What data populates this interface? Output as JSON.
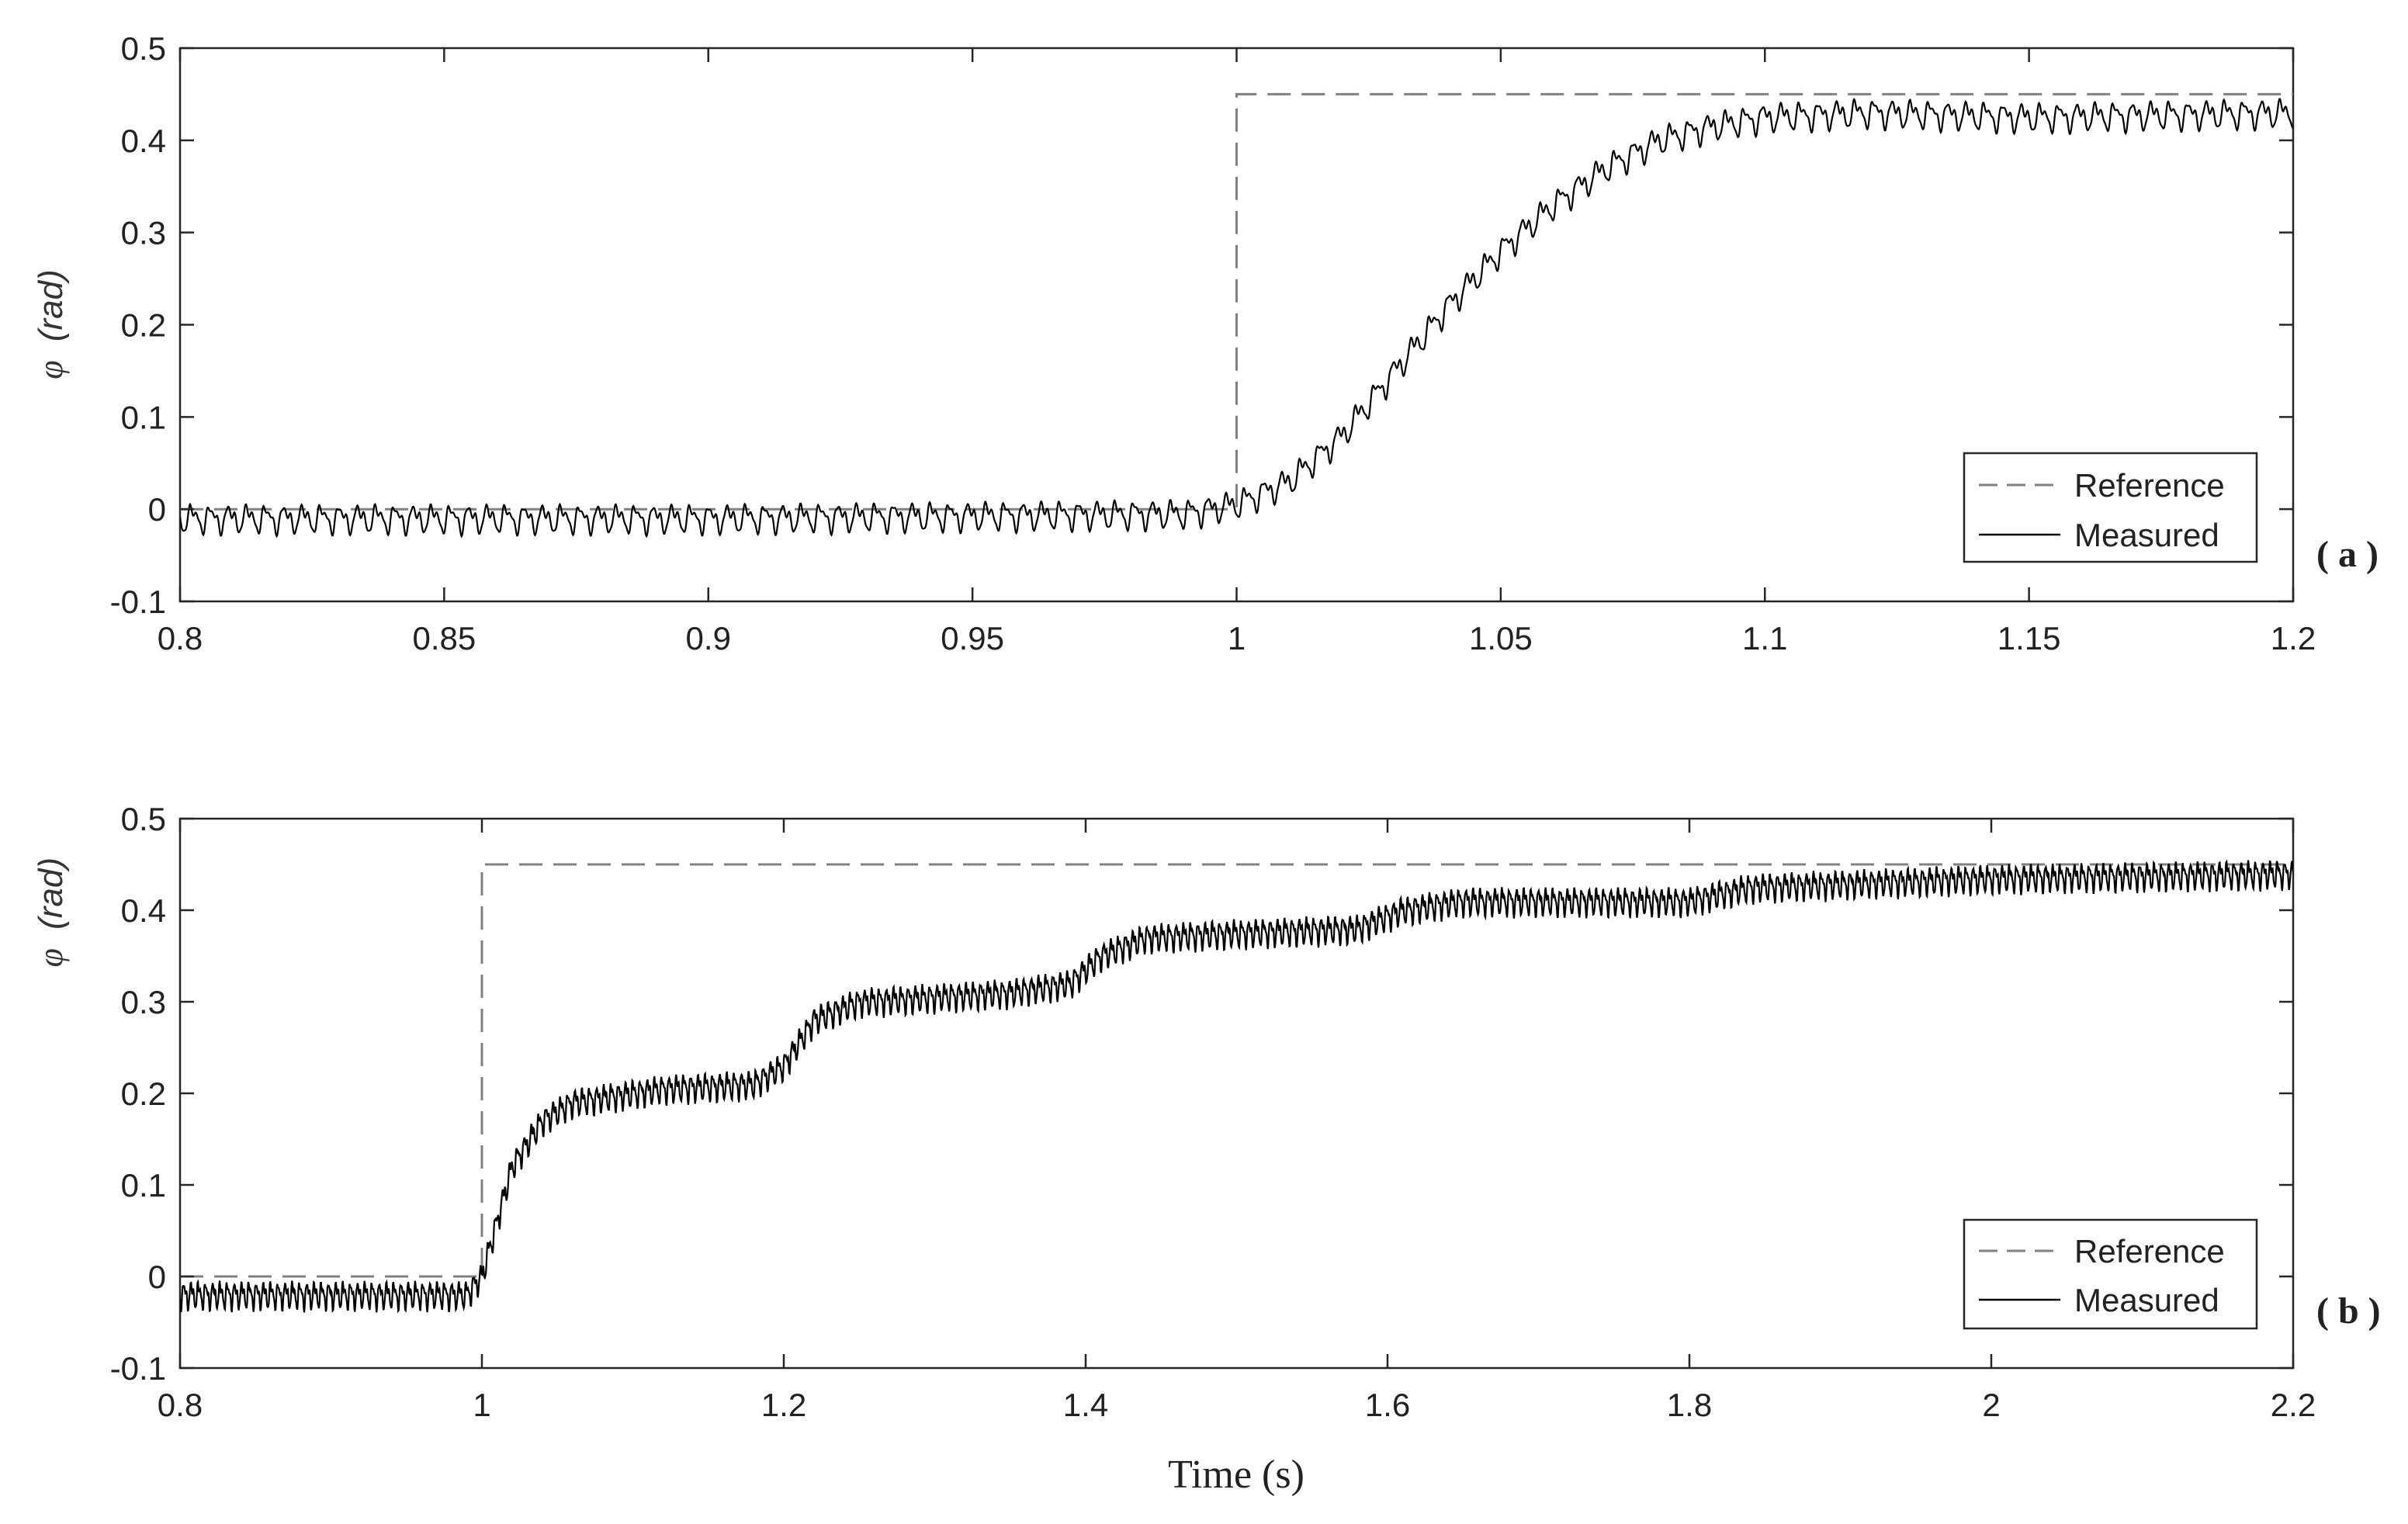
{
  "chart_data": [
    {
      "type": "line",
      "panel_label": "( a )",
      "xlabel": "",
      "ylabel_symbol": "φ",
      "ylabel_unit": "(rad)",
      "xlim": [
        0.8,
        1.2
      ],
      "ylim": [
        -0.1,
        0.5
      ],
      "xticks": [
        0.8,
        0.85,
        0.9,
        0.95,
        1,
        1.05,
        1.1,
        1.15,
        1.2
      ],
      "xtick_labels": [
        "0.8",
        "0.85",
        "0.9",
        "0.95",
        "1",
        "1.05",
        "1.1",
        "1.15",
        "1.2"
      ],
      "yticks": [
        -0.1,
        0,
        0.1,
        0.2,
        0.3,
        0.4,
        0.5
      ],
      "ytick_labels": [
        "-0.1",
        "0",
        "0.1",
        "0.2",
        "0.3",
        "0.4",
        "0.5"
      ],
      "legend": {
        "placement": "bottom-right",
        "entries": [
          "Reference",
          "Measured"
        ]
      },
      "grid": false,
      "series": [
        {
          "name": "Reference",
          "style": "dashed",
          "color": "#808080",
          "x": [
            0.8,
            1.0,
            1.0,
            1.2
          ],
          "y": [
            0,
            0,
            0.45,
            0.45
          ]
        },
        {
          "name": "Measured",
          "style": "solid",
          "color": "#000000",
          "x": [
            0.8,
            0.9,
            0.99,
            1.0,
            1.01,
            1.02,
            1.03,
            1.04,
            1.05,
            1.06,
            1.07,
            1.08,
            1.09,
            1.1,
            1.12,
            1.15,
            1.2
          ],
          "y": [
            -0.01,
            -0.01,
            -0.005,
            0.005,
            0.03,
            0.08,
            0.15,
            0.22,
            0.28,
            0.33,
            0.37,
            0.4,
            0.415,
            0.425,
            0.43,
            0.425,
            0.43
          ],
          "ripple_amplitude": 0.02,
          "ripple_period": 0.0035
        }
      ]
    },
    {
      "type": "line",
      "panel_label": "( b )",
      "xlabel": "Time (s)",
      "ylabel_symbol": "φ",
      "ylabel_unit": "(rad)",
      "xlim": [
        0.8,
        2.2
      ],
      "ylim": [
        -0.1,
        0.5
      ],
      "xticks": [
        0.8,
        1,
        1.2,
        1.4,
        1.6,
        1.8,
        2,
        2.2
      ],
      "xtick_labels": [
        "0.8",
        "1",
        "1.2",
        "1.4",
        "1.6",
        "1.8",
        "2",
        "2.2"
      ],
      "yticks": [
        -0.1,
        0,
        0.1,
        0.2,
        0.3,
        0.4,
        0.5
      ],
      "ytick_labels": [
        "-0.1",
        "0",
        "0.1",
        "0.2",
        "0.3",
        "0.4",
        "0.5"
      ],
      "legend": {
        "placement": "bottom-right",
        "entries": [
          "Reference",
          "Measured"
        ]
      },
      "grid": false,
      "series": [
        {
          "name": "Reference",
          "style": "dashed",
          "color": "#808080",
          "x": [
            0.8,
            1.0,
            1.0,
            2.2
          ],
          "y": [
            0,
            0,
            0.45,
            0.45
          ]
        },
        {
          "name": "Measured",
          "style": "solid",
          "color": "#000000",
          "x": [
            0.8,
            0.99,
            1.0,
            1.02,
            1.04,
            1.06,
            1.12,
            1.18,
            1.2,
            1.22,
            1.25,
            1.35,
            1.39,
            1.41,
            1.44,
            1.5,
            1.58,
            1.61,
            1.65,
            1.8,
            1.84,
            2.0,
            2.2
          ],
          "y": [
            -0.02,
            -0.02,
            0.0,
            0.12,
            0.17,
            0.19,
            0.205,
            0.21,
            0.23,
            0.28,
            0.3,
            0.31,
            0.32,
            0.35,
            0.37,
            0.375,
            0.38,
            0.4,
            0.41,
            0.41,
            0.425,
            0.435,
            0.44
          ],
          "ripple_amplitude": 0.02,
          "ripple_period": 0.0048
        }
      ]
    }
  ]
}
